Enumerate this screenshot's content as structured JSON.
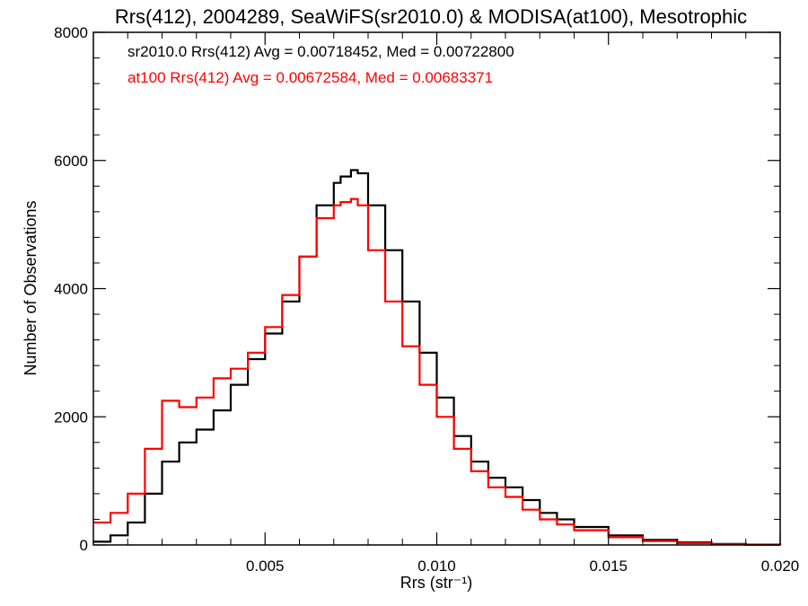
{
  "chart_data": {
    "type": "line",
    "title": "Rrs(412), 2004289, SeaWiFS(sr2010.0) & MODISA(at100), Mesotrophic",
    "xlabel": "Rrs (str⁻¹)",
    "ylabel": "Number of Observations",
    "xlim": [
      0.0,
      0.02
    ],
    "ylim": [
      0,
      8000
    ],
    "xticks": [
      0.005,
      0.01,
      0.015,
      0.02
    ],
    "xtick_labels": [
      "0.005",
      "0.010",
      "0.015",
      "0.020"
    ],
    "yticks": [
      0,
      2000,
      4000,
      6000,
      8000
    ],
    "ytick_labels": [
      "0",
      "2000",
      "4000",
      "6000",
      "8000"
    ],
    "grid": false,
    "annotations": [
      {
        "text": "sr2010.0 Rrs(412) Avg = 0.00718452, Med = 0.00722800",
        "color": "#000000"
      },
      {
        "text": "at100 Rrs(412) Avg = 0.00672584, Med = 0.00683371",
        "color": "#ff0000"
      }
    ],
    "series": [
      {
        "color": "#000000",
        "x": [
          0.0,
          0.0005,
          0.001,
          0.0015,
          0.002,
          0.0025,
          0.003,
          0.0035,
          0.004,
          0.0045,
          0.005,
          0.0055,
          0.006,
          0.0065,
          0.007,
          0.0072,
          0.0075,
          0.0077,
          0.008,
          0.0085,
          0.009,
          0.0095,
          0.01,
          0.0105,
          0.011,
          0.0115,
          0.012,
          0.0125,
          0.013,
          0.0135,
          0.014,
          0.015,
          0.016,
          0.017,
          0.018,
          0.019,
          0.02
        ],
        "y": [
          50,
          150,
          350,
          800,
          1300,
          1600,
          1800,
          2100,
          2500,
          2900,
          3300,
          3800,
          4500,
          5300,
          5650,
          5750,
          5850,
          5800,
          5300,
          4600,
          3800,
          3000,
          2300,
          1700,
          1300,
          1050,
          900,
          700,
          500,
          400,
          280,
          150,
          80,
          40,
          15,
          5,
          0
        ]
      },
      {
        "color": "#ff0000",
        "x": [
          0.0,
          0.0005,
          0.001,
          0.0015,
          0.002,
          0.0025,
          0.003,
          0.0035,
          0.004,
          0.0045,
          0.005,
          0.0055,
          0.006,
          0.0065,
          0.007,
          0.0072,
          0.0075,
          0.0077,
          0.008,
          0.0085,
          0.009,
          0.0095,
          0.01,
          0.0105,
          0.011,
          0.0115,
          0.012,
          0.0125,
          0.013,
          0.0135,
          0.014,
          0.015,
          0.016,
          0.017,
          0.018,
          0.019,
          0.02
        ],
        "y": [
          350,
          500,
          800,
          1500,
          2250,
          2150,
          2300,
          2600,
          2750,
          3000,
          3400,
          3900,
          4500,
          5100,
          5300,
          5350,
          5400,
          5300,
          4600,
          3800,
          3100,
          2500,
          2000,
          1500,
          1150,
          900,
          750,
          550,
          400,
          320,
          230,
          120,
          60,
          30,
          10,
          3,
          0
        ]
      }
    ]
  }
}
